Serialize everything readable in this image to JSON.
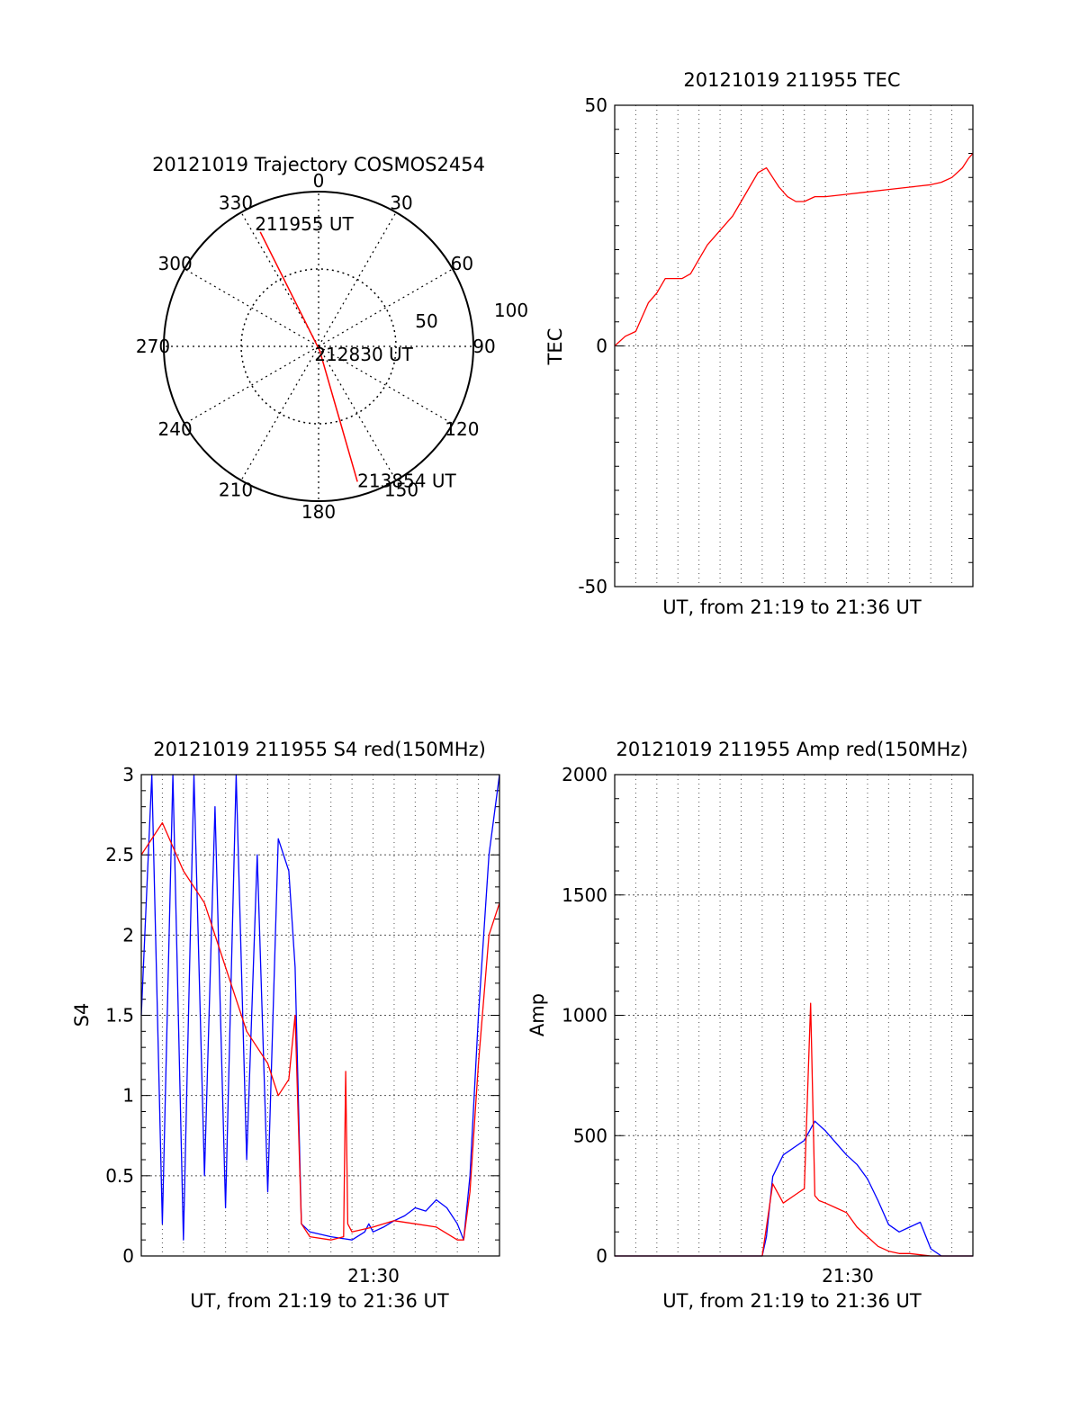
{
  "colors": {
    "red": "#ff0000",
    "blue": "#0000ff",
    "axis": "#000000",
    "grid": "#555555",
    "background": "#ffffff"
  },
  "chart_data": [
    {
      "type": "polar",
      "title": "20121019 Trajectory COSMOS2454",
      "angle_labels": [
        "0",
        "30",
        "60",
        "90",
        "120",
        "150",
        "180",
        "210",
        "240",
        "270",
        "300",
        "330"
      ],
      "radius_labels": [
        "50",
        "100"
      ],
      "rlim": [
        0,
        100
      ],
      "grid": true,
      "series": [
        {
          "color": "red",
          "points": [
            {
              "az": 333,
              "r": 83,
              "label": "211955 UT"
            },
            {
              "az": 165,
              "r": 3,
              "label": "212830 UT"
            },
            {
              "az": 164,
              "r": 91,
              "label": "213854 UT"
            }
          ]
        }
      ]
    },
    {
      "type": "line",
      "title": "20121019 211955 TEC",
      "xlabel": "UT, from 21:19 to 21:36 UT",
      "ylabel": "TEC",
      "xlim": [
        0,
        17
      ],
      "ylim": [
        -50,
        50
      ],
      "yticks": [
        "-50",
        "0",
        "50"
      ],
      "grid": true,
      "series": [
        {
          "color": "red",
          "x": [
            0.0,
            0.5,
            1.0,
            1.3,
            1.6,
            2.0,
            2.4,
            2.8,
            3.2,
            3.6,
            4.0,
            4.4,
            4.8,
            5.2,
            5.6,
            6.0,
            6.4,
            6.8,
            7.2,
            7.35,
            7.5,
            7.8,
            8.2,
            8.6,
            9.0,
            9.5,
            10,
            11,
            12,
            13,
            14,
            15,
            15.5,
            16,
            16.5,
            16.8,
            17.0
          ],
          "y": [
            0,
            2,
            3,
            6,
            9,
            11,
            14,
            14,
            14,
            15,
            18,
            21,
            23,
            25,
            27,
            30,
            33,
            36,
            37,
            36,
            35,
            33,
            31,
            30,
            30,
            31,
            31,
            31.5,
            32,
            32.5,
            33,
            33.5,
            34,
            35,
            37,
            39,
            40
          ]
        }
      ]
    },
    {
      "type": "line",
      "title": "20121019 211955 S4 red(150MHz)",
      "xlabel": "UT, from 21:19 to 21:36 UT",
      "ylabel": "S4",
      "xtick_labels": [
        "21:30"
      ],
      "xlim": [
        0,
        17
      ],
      "ylim": [
        0,
        3
      ],
      "yticks": [
        "0",
        "0.5",
        "1",
        "1.5",
        "2",
        "2.5",
        "3"
      ],
      "grid": true,
      "series": [
        {
          "color": "blue",
          "x": [
            0,
            0.5,
            1,
            1.5,
            2,
            2.5,
            3,
            3.5,
            4,
            4.5,
            5,
            5.5,
            6,
            6.5,
            7,
            7.3,
            7.6,
            8,
            9,
            10,
            10.6,
            10.8,
            11,
            11.5,
            12,
            12.5,
            13,
            13.5,
            14,
            14.5,
            15,
            15.3,
            15.6,
            16,
            16.5,
            17
          ],
          "y": [
            1.5,
            3,
            0.2,
            3,
            0.1,
            3,
            0.5,
            2.8,
            0.3,
            3,
            0.6,
            2.5,
            0.4,
            2.6,
            2.4,
            1.8,
            0.2,
            0.15,
            0.12,
            0.1,
            0.15,
            0.2,
            0.15,
            0.18,
            0.22,
            0.25,
            0.3,
            0.28,
            0.35,
            0.3,
            0.2,
            0.1,
            0.5,
            1.5,
            2.5,
            3
          ]
        },
        {
          "color": "red",
          "x": [
            0,
            1,
            2,
            3,
            4,
            5,
            5.5,
            6,
            6.5,
            7,
            7.3,
            7.6,
            8,
            9,
            9.6,
            9.7,
            9.8,
            10,
            11,
            12,
            13,
            14,
            15,
            15.3,
            15.6,
            16,
            16.5,
            17
          ],
          "y": [
            2.5,
            2.7,
            2.4,
            2.2,
            1.8,
            1.4,
            1.3,
            1.2,
            1.0,
            1.1,
            1.5,
            0.2,
            0.12,
            0.1,
            0.12,
            1.15,
            0.2,
            0.15,
            0.18,
            0.22,
            0.2,
            0.18,
            0.1,
            0.1,
            0.4,
            1.2,
            2.0,
            2.2
          ]
        }
      ]
    },
    {
      "type": "line",
      "title": "20121019 211955 Amp red(150MHz)",
      "xlabel": "UT, from 21:19 to 21:36 UT",
      "ylabel": "Amp",
      "xtick_labels": [
        "21:30"
      ],
      "xlim": [
        0,
        17
      ],
      "ylim": [
        0,
        2000
      ],
      "yticks": [
        "0",
        "500",
        "1000",
        "1500",
        "2000"
      ],
      "grid": true,
      "series": [
        {
          "color": "blue",
          "x": [
            0,
            2,
            4,
            6,
            7.0,
            7.2,
            7.5,
            8,
            8.5,
            9,
            9.5,
            10,
            10.5,
            11,
            11.5,
            12,
            12.5,
            13,
            13.5,
            14,
            14.5,
            15,
            15.5,
            16,
            17
          ],
          "y": [
            0,
            0,
            0,
            0,
            0,
            80,
            330,
            420,
            450,
            480,
            560,
            520,
            470,
            420,
            380,
            320,
            230,
            130,
            100,
            120,
            140,
            30,
            0,
            0,
            0
          ]
        },
        {
          "color": "red",
          "x": [
            0,
            2,
            4,
            6,
            7.0,
            7.2,
            7.5,
            8,
            8.5,
            9,
            9.3,
            9.5,
            9.7,
            10,
            10.5,
            11,
            11.5,
            12,
            12.5,
            13,
            13.5,
            14,
            14.5,
            15,
            17
          ],
          "y": [
            0,
            0,
            0,
            0,
            0,
            120,
            300,
            220,
            250,
            280,
            1050,
            250,
            230,
            220,
            200,
            180,
            120,
            80,
            40,
            20,
            10,
            10,
            5,
            0,
            0
          ]
        }
      ]
    }
  ]
}
